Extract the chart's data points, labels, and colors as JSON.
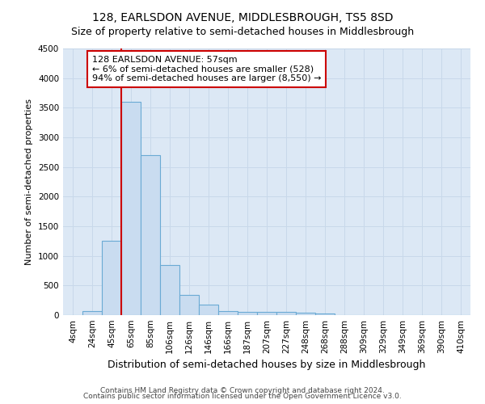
{
  "title": "128, EARLSDON AVENUE, MIDDLESBROUGH, TS5 8SD",
  "subtitle": "Size of property relative to semi-detached houses in Middlesbrough",
  "xlabel": "Distribution of semi-detached houses by size in Middlesbrough",
  "ylabel": "Number of semi-detached properties",
  "footnote1": "Contains HM Land Registry data © Crown copyright and database right 2024.",
  "footnote2": "Contains public sector information licensed under the Open Government Licence v3.0.",
  "bar_labels": [
    "4sqm",
    "24sqm",
    "45sqm",
    "65sqm",
    "85sqm",
    "106sqm",
    "126sqm",
    "146sqm",
    "166sqm",
    "187sqm",
    "207sqm",
    "227sqm",
    "248sqm",
    "268sqm",
    "288sqm",
    "309sqm",
    "329sqm",
    "349sqm",
    "369sqm",
    "390sqm",
    "410sqm"
  ],
  "bar_values": [
    0,
    75,
    1250,
    3600,
    2700,
    850,
    340,
    175,
    75,
    55,
    50,
    50,
    40,
    30,
    5,
    3,
    2,
    1,
    1,
    0,
    0
  ],
  "bar_color": "#c9dcf0",
  "bar_edge_color": "#6aaad4",
  "ylim": [
    0,
    4500
  ],
  "yticks": [
    0,
    500,
    1000,
    1500,
    2000,
    2500,
    3000,
    3500,
    4000,
    4500
  ],
  "property_label_line1": "128 EARLSDON AVENUE: 57sqm",
  "property_label_line2": "← 6% of semi-detached houses are smaller (528)",
  "property_label_line3": "94% of semi-detached houses are larger (8,550) →",
  "annotation_box_color": "white",
  "annotation_box_edge": "#cc0000",
  "red_line_color": "#cc0000",
  "grid_color": "#c8d8ea",
  "bg_color": "#dce8f5",
  "title_fontsize": 10,
  "subtitle_fontsize": 9,
  "xlabel_fontsize": 9,
  "ylabel_fontsize": 8,
  "tick_fontsize": 7.5,
  "annotation_fontsize": 8,
  "footnote_fontsize": 6.5
}
